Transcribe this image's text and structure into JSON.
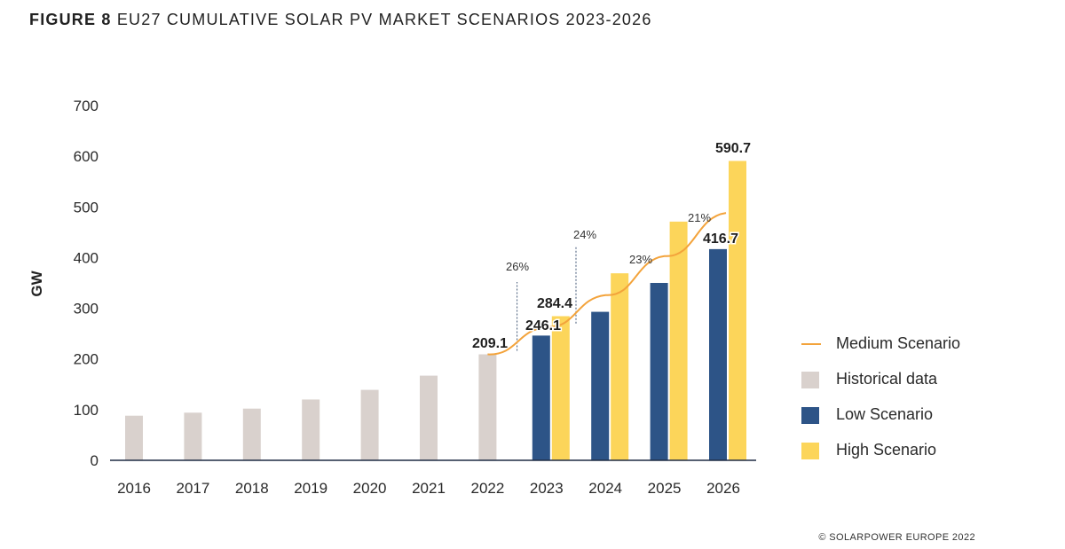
{
  "title": {
    "lead": "FIGURE 8",
    "text": "EU27 CUMULATIVE SOLAR PV MARKET SCENARIOS 2023-2026"
  },
  "credit": "© SOLARPOWER EUROPE 2022",
  "colors": {
    "historical": "#d9d1cd",
    "low": "#2d5487",
    "high": "#fcd55a",
    "medium": "#f3a33b",
    "axis": "#1f2c44",
    "dotted": "#3f5574"
  },
  "legend": [
    {
      "key": "medium",
      "label": "Medium Scenario",
      "shape": "line"
    },
    {
      "key": "historical",
      "label": "Historical data",
      "shape": "box"
    },
    {
      "key": "low",
      "label": "Low Scenario",
      "shape": "box"
    },
    {
      "key": "high",
      "label": "High Scenario",
      "shape": "box"
    }
  ],
  "chart_data": {
    "type": "bar",
    "ylabel": "GW",
    "xlabel": "",
    "ylim": [
      0,
      700
    ],
    "yticks": [
      0,
      100,
      200,
      300,
      400,
      500,
      600,
      700
    ],
    "grid": false,
    "legend_position": "right",
    "categories": [
      "2016",
      "2017",
      "2018",
      "2019",
      "2020",
      "2021",
      "2022",
      "2023",
      "2024",
      "2025",
      "2026"
    ],
    "historical": [
      88,
      94,
      102,
      120,
      139,
      167,
      209.1,
      null,
      null,
      null,
      null
    ],
    "series": [
      {
        "name": "Low Scenario",
        "key": "low",
        "values": [
          null,
          null,
          null,
          null,
          null,
          null,
          null,
          246.1,
          293,
          350,
          416.7
        ]
      },
      {
        "name": "High Scenario",
        "key": "high",
        "values": [
          null,
          null,
          null,
          null,
          null,
          null,
          null,
          284.4,
          369,
          471,
          590.7
        ]
      }
    ],
    "medium": {
      "name": "Medium Scenario",
      "values": [
        null,
        null,
        null,
        null,
        null,
        null,
        209.1,
        263,
        326,
        403,
        488
      ]
    },
    "data_labels": [
      {
        "category": "2022",
        "text": "209.1"
      },
      {
        "category": "2023",
        "text": "246.1"
      },
      {
        "category": "2023",
        "text": "284.4"
      },
      {
        "category": "2026",
        "text": "416.7"
      },
      {
        "category": "2026",
        "text": "590.7"
      }
    ],
    "growth_labels": [
      {
        "between": [
          "2022",
          "2023"
        ],
        "text": "26%",
        "marker": true
      },
      {
        "between": [
          "2023",
          "2024"
        ],
        "text": "24%",
        "marker": true
      },
      {
        "between": [
          "2024",
          "2025"
        ],
        "text": "23%",
        "marker": false
      },
      {
        "between": [
          "2025",
          "2026"
        ],
        "text": "21%",
        "marker": false
      }
    ]
  }
}
